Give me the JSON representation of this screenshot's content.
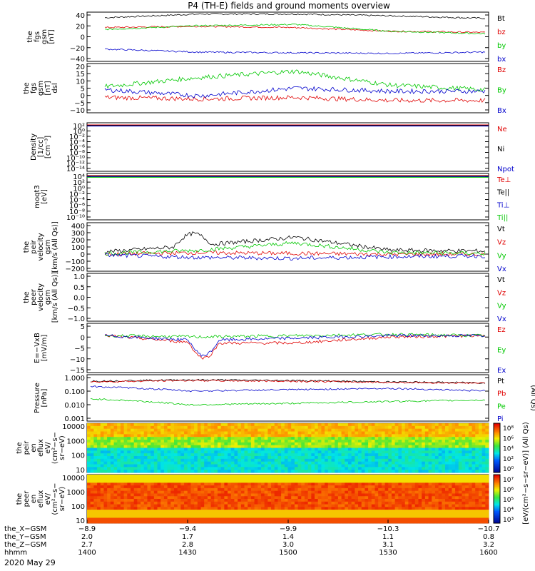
{
  "title": "P4 (TH-E) fields and ground moments overview",
  "date": "2020 May 29",
  "panels": [
    {
      "id": "fgs",
      "ylabel": [
        "the",
        "fgs",
        "gsm",
        "[nT]"
      ],
      "ticks": [
        "40",
        "20",
        "0",
        "−20",
        "−40"
      ],
      "legend": [
        [
          "Bt",
          "#000000"
        ],
        [
          "bz",
          "#e00000"
        ],
        [
          "by",
          "#00c800"
        ],
        [
          "bx",
          "#0000cc"
        ]
      ]
    },
    {
      "id": "fgm",
      "ylabel": [
        "the",
        "fgs",
        "gsm",
        "[nT]",
        "dsl"
      ],
      "ticks": [
        "20",
        "15",
        "10",
        "5",
        "0",
        "−5",
        "−10"
      ],
      "legend": [
        [
          "Bz",
          "#e00000"
        ],
        [
          "By",
          "#00c800"
        ],
        [
          "Bx",
          "#0000cc"
        ]
      ]
    },
    {
      "id": "density",
      "ylabel": [
        "Density",
        "[1/cc]",
        "[cm⁻³]"
      ],
      "ticks": [
        "10²",
        "10⁰",
        "10⁻²",
        "10⁻⁴",
        "10⁻⁶",
        "10⁻⁸",
        "10⁻¹⁰",
        "10⁻¹²",
        "10⁻¹⁴"
      ],
      "legend": [
        [
          "Ne",
          "#e00000"
        ],
        [
          "Ni",
          "#000000"
        ],
        [
          "Npot",
          "#0000cc"
        ]
      ]
    },
    {
      "id": "temp",
      "ylabel": [
        "moqt3",
        "[eV]"
      ],
      "ticks": [
        "10⁴",
        "10²",
        "10⁰",
        "10⁻²",
        "10⁻⁴",
        "10⁻⁶",
        "10⁻⁸",
        "10⁻¹⁰"
      ],
      "legend": [
        [
          "Te⊥",
          "#e00000"
        ],
        [
          "Te||",
          "#000000"
        ],
        [
          "Ti⊥",
          "#0000cc"
        ],
        [
          "Ti||",
          "#00c800"
        ]
      ]
    },
    {
      "id": "peir_vel",
      "ylabel": [
        "the",
        "peir",
        "velocity",
        "gsm",
        "[km/s (All Qs)]"
      ],
      "ticks": [
        "400",
        "300",
        "200",
        "100",
        "0",
        "−100",
        "−200"
      ],
      "legend": [
        [
          "Vt",
          "#000000"
        ],
        [
          "Vz",
          "#e00000"
        ],
        [
          "Vy",
          "#00c800"
        ],
        [
          "Vx",
          "#0000cc"
        ]
      ]
    },
    {
      "id": "peer_vel",
      "ylabel": [
        "the",
        "peer",
        "velocity",
        "gsm",
        "[km/s (All Qs)]"
      ],
      "ticks": [
        "1.0",
        "0.5",
        "0.0",
        "−0.5",
        "−1.0"
      ],
      "legend": [
        [
          "Vt",
          "#000000"
        ],
        [
          "Vz",
          "#e00000"
        ],
        [
          "Vy",
          "#00c800"
        ],
        [
          "Vx",
          "#0000cc"
        ]
      ]
    },
    {
      "id": "efield",
      "ylabel": [
        "E=−VxB",
        "[mV/m]"
      ],
      "ticks": [
        "5",
        "0",
        "−5",
        "−10",
        "−15"
      ],
      "legend": [
        [
          "Ez",
          "#e00000"
        ],
        [
          "Ey",
          "#00c800"
        ],
        [
          "Ex",
          "#0000cc"
        ]
      ]
    },
    {
      "id": "pressure",
      "ylabel": [
        "Pressure",
        "[nPa]"
      ],
      "ticks": [
        "1.000",
        "0.100",
        "0.010",
        "0.001"
      ],
      "legend": [
        [
          "Pt",
          "#000000"
        ],
        [
          "Pb",
          "#e00000"
        ],
        [
          "Pe",
          "#00c800"
        ],
        [
          "Pi",
          "#0000cc"
        ]
      ],
      "right_label": "(All Qs)"
    },
    {
      "id": "peir_spec",
      "ylabel": [
        "the",
        "peir",
        "en",
        "eflux",
        "eV/",
        "(cm²−s−",
        "sr−eV)"
      ],
      "ticks": [
        "10000",
        "1000",
        "100",
        "10"
      ]
    },
    {
      "id": "peer_spec",
      "ylabel": [
        "the",
        "peer",
        "en",
        "eflux",
        "eV/",
        "(cm²−s−",
        "sr−eV)"
      ],
      "ticks": [
        "10000",
        "1000",
        "100",
        "10"
      ]
    }
  ],
  "colorbar": {
    "upper_ticks": [
      "10⁸",
      "10⁶",
      "10⁴",
      "10²",
      "10⁰"
    ],
    "lower_ticks": [
      "10⁷",
      "10⁶",
      "10⁵",
      "10⁴",
      "10³"
    ],
    "label": "[eV/(cm²−s−sr−eV)] (All Qs)"
  },
  "xaxis": {
    "row_labels": [
      "the_X−GSM",
      "the_Y−GSM",
      "the_Z−GSM",
      "hhmm"
    ],
    "columns": [
      {
        "x": "−8.9",
        "y": "2.0",
        "z": "2.7",
        "hhmm": "1400"
      },
      {
        "x": "−9.4",
        "y": "1.7",
        "z": "2.8",
        "hhmm": "1430"
      },
      {
        "x": "−9.9",
        "y": "1.4",
        "z": "3.0",
        "hhmm": "1500"
      },
      {
        "x": "−10.3",
        "y": "1.1",
        "z": "3.1",
        "hhmm": "1530"
      },
      {
        "x": "−10.7",
        "y": "0.8",
        "z": "3.2",
        "hhmm": "1600"
      }
    ]
  },
  "chart_data": {
    "type": "line",
    "title": "P4 (TH-E) fields and ground moments overview",
    "x": [
      1400,
      1430,
      1500,
      1530,
      1600
    ],
    "xlabel": "hhmm",
    "series": [
      {
        "name": "Bt",
        "panel": "fgs",
        "values": [
          31,
          37,
          37,
          34,
          30
        ]
      },
      {
        "name": "bz",
        "panel": "fgs",
        "values": [
          15,
          17,
          15,
          9,
          7
        ]
      },
      {
        "name": "by",
        "panel": "fgs",
        "values": [
          12,
          18,
          20,
          9,
          5
        ]
      },
      {
        "name": "bx",
        "panel": "fgs",
        "values": [
          -20,
          -25,
          -26,
          -27,
          -25
        ]
      },
      {
        "name": "Bz",
        "panel": "fgm",
        "values": [
          -2,
          -3,
          -2,
          -4,
          -4
        ]
      },
      {
        "name": "By",
        "panel": "fgm",
        "values": [
          5,
          11,
          15,
          6,
          3
        ]
      },
      {
        "name": "Bx",
        "panel": "fgm",
        "values": [
          3,
          -1,
          4,
          2,
          2
        ]
      },
      {
        "name": "Vt",
        "panel": "peir_vel",
        "values": [
          40,
          120,
          220,
          60,
          50
        ]
      },
      {
        "name": "Vz",
        "panel": "peir_vel",
        "values": [
          10,
          30,
          20,
          10,
          10
        ]
      },
      {
        "name": "Vy",
        "panel": "peir_vel",
        "values": [
          20,
          60,
          150,
          30,
          20
        ]
      },
      {
        "name": "Vx",
        "panel": "peir_vel",
        "values": [
          0,
          -30,
          -40,
          -20,
          -10
        ]
      },
      {
        "name": "Ez",
        "panel": "efield",
        "values": [
          0,
          -3,
          -3,
          -0.5,
          0
        ]
      },
      {
        "name": "Ey",
        "panel": "efield",
        "values": [
          0,
          -0.5,
          0,
          0.5,
          0
        ]
      },
      {
        "name": "Ex",
        "panel": "efield",
        "values": [
          0,
          -2,
          -1,
          0,
          0
        ]
      },
      {
        "name": "Pt",
        "panel": "pressure",
        "values": [
          0.45,
          0.55,
          0.5,
          0.4,
          0.35
        ]
      },
      {
        "name": "Pb",
        "panel": "pressure",
        "values": [
          0.4,
          0.5,
          0.45,
          0.38,
          0.33
        ]
      },
      {
        "name": "Pe",
        "panel": "pressure",
        "values": [
          0.03,
          0.012,
          0.015,
          0.02,
          0.025
        ]
      },
      {
        "name": "Pi",
        "panel": "pressure",
        "values": [
          0.2,
          0.1,
          0.12,
          0.15,
          0.1
        ]
      }
    ]
  }
}
